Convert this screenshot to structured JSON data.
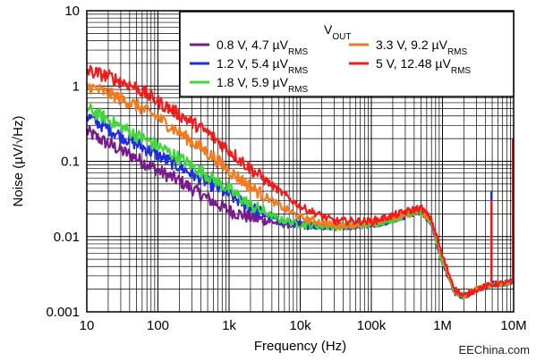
{
  "chart_data": {
    "type": "line",
    "xlabel": "Frequency (Hz)",
    "ylabel": "Noise (µV/√Hz)",
    "xscale": "log",
    "yscale": "log",
    "xlim": [
      10,
      10000000
    ],
    "ylim": [
      0.001,
      10
    ],
    "grid": true,
    "legend_placement": "top-right",
    "legend_title": "V",
    "legend_title_sub": "OUT",
    "x_ticks": [
      {
        "value": 10,
        "label": "10"
      },
      {
        "value": 100,
        "label": "100"
      },
      {
        "value": 1000,
        "label": "1k"
      },
      {
        "value": 10000,
        "label": "10k"
      },
      {
        "value": 100000,
        "label": "100k"
      },
      {
        "value": 1000000,
        "label": "1M"
      },
      {
        "value": 10000000,
        "label": "10M"
      }
    ],
    "y_ticks": [
      {
        "value": 0.001,
        "label": "0.001"
      },
      {
        "value": 0.01,
        "label": "0.01"
      },
      {
        "value": 0.1,
        "label": "0.1"
      },
      {
        "value": 1,
        "label": "1"
      },
      {
        "value": 10,
        "label": "10"
      }
    ],
    "series": [
      {
        "name": "0.8 V, 4.7 µV",
        "name_sub": "RMS",
        "color": "#7b1a8c",
        "points": [
          [
            10,
            0.25
          ],
          [
            20,
            0.17
          ],
          [
            50,
            0.11
          ],
          [
            100,
            0.075
          ],
          [
            200,
            0.055
          ],
          [
            500,
            0.032
          ],
          [
            1000,
            0.022
          ],
          [
            2000,
            0.018
          ],
          [
            5000,
            0.015
          ],
          [
            10000,
            0.014
          ],
          [
            30000,
            0.0135
          ],
          [
            100000,
            0.0145
          ],
          [
            200000,
            0.017
          ],
          [
            400000,
            0.021
          ],
          [
            500000,
            0.022
          ],
          [
            700000,
            0.015
          ],
          [
            1000000,
            0.0045
          ],
          [
            1500000,
            0.0018
          ],
          [
            2000000,
            0.0016
          ],
          [
            3000000,
            0.002
          ],
          [
            5000000,
            0.0023
          ],
          [
            10000000,
            0.0025
          ]
        ]
      },
      {
        "name": "1.2 V, 5.4 µV",
        "name_sub": "RMS",
        "color": "#1f2de0",
        "points": [
          [
            10,
            0.4
          ],
          [
            20,
            0.27
          ],
          [
            50,
            0.17
          ],
          [
            100,
            0.12
          ],
          [
            200,
            0.085
          ],
          [
            500,
            0.052
          ],
          [
            1000,
            0.036
          ],
          [
            2000,
            0.024
          ],
          [
            5000,
            0.016
          ],
          [
            10000,
            0.0145
          ],
          [
            30000,
            0.0135
          ],
          [
            100000,
            0.0145
          ],
          [
            200000,
            0.017
          ],
          [
            400000,
            0.021
          ],
          [
            500000,
            0.022
          ],
          [
            700000,
            0.015
          ],
          [
            1000000,
            0.0045
          ],
          [
            1500000,
            0.0018
          ],
          [
            2000000,
            0.0016
          ],
          [
            3000000,
            0.002
          ],
          [
            5000000,
            0.0023
          ],
          [
            10000000,
            0.0025
          ]
        ]
      },
      {
        "name": "1.8 V, 5.9 µV",
        "name_sub": "RMS",
        "color": "#3fd83a",
        "points": [
          [
            10,
            0.5
          ],
          [
            20,
            0.36
          ],
          [
            50,
            0.22
          ],
          [
            100,
            0.16
          ],
          [
            200,
            0.11
          ],
          [
            500,
            0.065
          ],
          [
            1000,
            0.042
          ],
          [
            2000,
            0.026
          ],
          [
            5000,
            0.017
          ],
          [
            10000,
            0.0145
          ],
          [
            30000,
            0.0135
          ],
          [
            100000,
            0.0145
          ],
          [
            200000,
            0.017
          ],
          [
            400000,
            0.021
          ],
          [
            500000,
            0.022
          ],
          [
            700000,
            0.015
          ],
          [
            1000000,
            0.0045
          ],
          [
            1500000,
            0.0018
          ],
          [
            2000000,
            0.0016
          ],
          [
            3000000,
            0.002
          ],
          [
            5000000,
            0.0023
          ],
          [
            10000000,
            0.0025
          ]
        ]
      },
      {
        "name": "3.3 V, 9.2  µV",
        "name_sub": "RMS",
        "color": "#f47a1f",
        "points": [
          [
            10,
            1.0
          ],
          [
            20,
            0.8
          ],
          [
            50,
            0.55
          ],
          [
            100,
            0.38
          ],
          [
            200,
            0.24
          ],
          [
            500,
            0.13
          ],
          [
            1000,
            0.075
          ],
          [
            2000,
            0.046
          ],
          [
            5000,
            0.026
          ],
          [
            10000,
            0.018
          ],
          [
            30000,
            0.014
          ],
          [
            100000,
            0.015
          ],
          [
            200000,
            0.018
          ],
          [
            400000,
            0.022
          ],
          [
            500000,
            0.023
          ],
          [
            700000,
            0.016
          ],
          [
            1000000,
            0.005
          ],
          [
            1500000,
            0.0019
          ],
          [
            2000000,
            0.0016
          ],
          [
            3000000,
            0.002
          ],
          [
            5000000,
            0.0023
          ],
          [
            10000000,
            0.0025
          ]
        ]
      },
      {
        "name": "5 V, 12.48  µV",
        "name_sub": "RMS",
        "color": "#ef1c1c",
        "points": [
          [
            10,
            1.6
          ],
          [
            20,
            1.35
          ],
          [
            50,
            0.95
          ],
          [
            100,
            0.62
          ],
          [
            200,
            0.42
          ],
          [
            500,
            0.24
          ],
          [
            1000,
            0.14
          ],
          [
            2000,
            0.08
          ],
          [
            5000,
            0.041
          ],
          [
            10000,
            0.025
          ],
          [
            30000,
            0.016
          ],
          [
            100000,
            0.016
          ],
          [
            200000,
            0.019
          ],
          [
            400000,
            0.023
          ],
          [
            500000,
            0.024
          ],
          [
            700000,
            0.017
          ],
          [
            1000000,
            0.0055
          ],
          [
            1500000,
            0.002
          ],
          [
            2000000,
            0.0016
          ],
          [
            3000000,
            0.002
          ],
          [
            5000000,
            0.0023
          ],
          [
            10000000,
            0.0025
          ]
        ]
      }
    ]
  },
  "watermark": "EEChina.com"
}
